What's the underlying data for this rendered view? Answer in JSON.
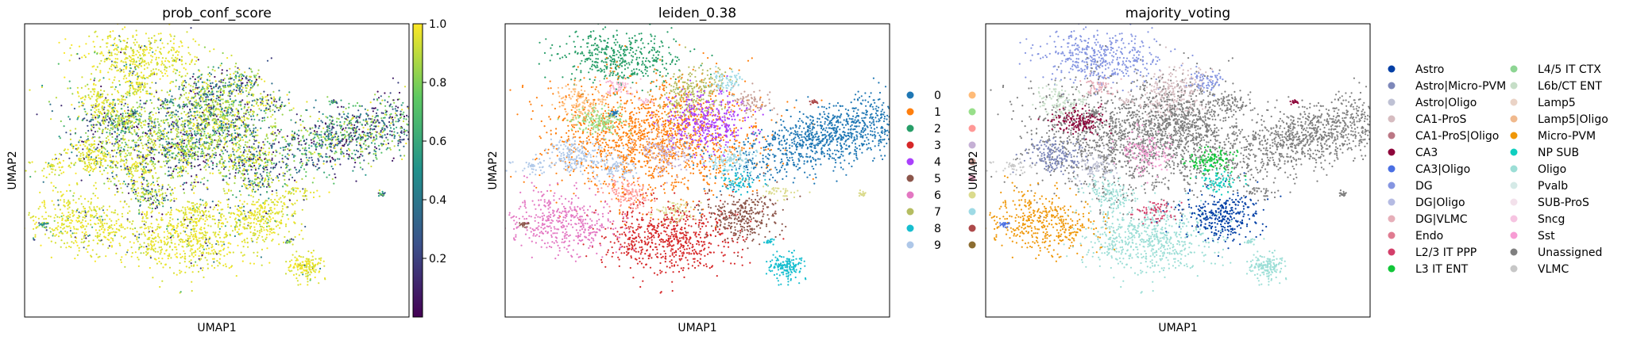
{
  "chart_data": [
    {
      "type": "scatter",
      "title": "prob_conf_score",
      "xlabel": "UMAP1",
      "ylabel": "UMAP2",
      "colorbar": {
        "colormap": "viridis",
        "range": [
          0.0,
          1.0
        ],
        "ticks": [
          0.2,
          0.4,
          0.6,
          0.8,
          1.0
        ],
        "tick_labels": [
          "0.2",
          "0.4",
          "0.6",
          "0.8",
          "1.0"
        ]
      },
      "color_stops": [
        "#440154",
        "#3b528b",
        "#21918c",
        "#5ec962",
        "#fde725"
      ]
    },
    {
      "type": "scatter",
      "title": "leiden_0.38",
      "xlabel": "UMAP1",
      "ylabel": "UMAP2",
      "legend_position": "right (clipped)",
      "legend": [
        {
          "label": "0",
          "color": "#1f77b4"
        },
        {
          "label": "1",
          "color": "#ff7f0e"
        },
        {
          "label": "2",
          "color": "#279e68"
        },
        {
          "label": "3",
          "color": "#d62728"
        },
        {
          "label": "4",
          "color": "#aa40fc"
        },
        {
          "label": "5",
          "color": "#8c564b"
        },
        {
          "label": "6",
          "color": "#e377c2"
        },
        {
          "label": "7",
          "color": "#b5bd61"
        },
        {
          "label": "8",
          "color": "#17becf"
        },
        {
          "label": "9",
          "color": "#aec7e8"
        }
      ],
      "legend_col2_colors": [
        "#ffbb78",
        "#98df8a",
        "#ff9896",
        "#c5b0d5",
        "#c49c94",
        "#f7b6d2",
        "#dbdb8d",
        "#9edae5",
        "#ad494a",
        "#8c6d31"
      ]
    },
    {
      "type": "scatter",
      "title": "majority_voting",
      "xlabel": "UMAP1",
      "ylabel": "UMAP2",
      "legend_position": "right",
      "legend": [
        {
          "label": "Astro",
          "color": "#023fa5"
        },
        {
          "label": "Astro|Micro-PVM",
          "color": "#7d87b9"
        },
        {
          "label": "Astro|Oligo",
          "color": "#bec1d4"
        },
        {
          "label": "CA1-ProS",
          "color": "#d6bcc0"
        },
        {
          "label": "CA1-ProS|Oligo",
          "color": "#bb7784"
        },
        {
          "label": "CA3",
          "color": "#8e063b"
        },
        {
          "label": "CA3|Oligo",
          "color": "#4a6fe3"
        },
        {
          "label": "DG",
          "color": "#8595e1"
        },
        {
          "label": "DG|Oligo",
          "color": "#b5bbe3"
        },
        {
          "label": "DG|VLMC",
          "color": "#e6afb9"
        },
        {
          "label": "Endo",
          "color": "#e07b91"
        },
        {
          "label": "L2/3 IT PPP",
          "color": "#d33f6a"
        },
        {
          "label": "L3 IT ENT",
          "color": "#11c638"
        },
        {
          "label": "L4/5 IT CTX",
          "color": "#8dd593"
        },
        {
          "label": "L6b/CT ENT",
          "color": "#c6dec7"
        },
        {
          "label": "Lamp5",
          "color": "#ead3c6"
        },
        {
          "label": "Lamp5|Oligo",
          "color": "#f0b98d"
        },
        {
          "label": "Micro-PVM",
          "color": "#ef9708"
        },
        {
          "label": "NP SUB",
          "color": "#0fcfc0"
        },
        {
          "label": "Oligo",
          "color": "#9cded6"
        },
        {
          "label": "Pvalb",
          "color": "#d5eae7"
        },
        {
          "label": "SUB-ProS",
          "color": "#f3e1eb"
        },
        {
          "label": "Sncg",
          "color": "#f6c4e1"
        },
        {
          "label": "Sst",
          "color": "#f79cd4"
        },
        {
          "label": "Unassigned",
          "color": "#7f7f7f"
        },
        {
          "label": "VLMC",
          "color": "#c7c7c7"
        }
      ]
    }
  ]
}
